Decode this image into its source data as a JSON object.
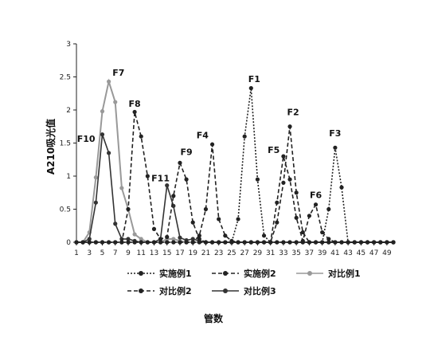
{
  "chart_data": {
    "type": "line",
    "title": "",
    "xlabel": "管数",
    "ylabel": "A210吸光值",
    "xlim": [
      1,
      50
    ],
    "ylim": [
      0,
      3
    ],
    "xticks": [
      1,
      3,
      5,
      7,
      9,
      11,
      13,
      15,
      17,
      19,
      21,
      23,
      25,
      27,
      29,
      31,
      33,
      35,
      37,
      39,
      41,
      43,
      45,
      47,
      49
    ],
    "yticks": [
      0,
      0.5,
      1,
      1.5,
      2,
      2.5,
      3
    ],
    "ytick_labels": [
      "0",
      "0.5",
      "1",
      "1.5",
      "2",
      "2.5",
      "3"
    ],
    "grid": false,
    "legend_position": "bottom",
    "x": [
      1,
      2,
      3,
      4,
      5,
      6,
      7,
      8,
      9,
      10,
      11,
      12,
      13,
      14,
      15,
      16,
      17,
      18,
      19,
      20,
      21,
      22,
      23,
      24,
      25,
      26,
      27,
      28,
      29,
      30,
      31,
      32,
      33,
      34,
      35,
      36,
      37,
      38,
      39,
      40,
      41,
      42,
      43,
      44,
      45,
      46,
      47,
      48,
      49,
      50
    ],
    "series": [
      {
        "name": "实施例1",
        "style": "dotted",
        "color": "#222222",
        "marker": true,
        "values": [
          0,
          0,
          0,
          0,
          0,
          0,
          0,
          0,
          0,
          0,
          0,
          0,
          0,
          0,
          0,
          0,
          0,
          0,
          0,
          0,
          0,
          0,
          0,
          0,
          0,
          0.35,
          1.6,
          2.33,
          0.95,
          0.1,
          0,
          0,
          0,
          0,
          0,
          0,
          0,
          0,
          0,
          0.5,
          1.43,
          0.83,
          0,
          0,
          0,
          0,
          0,
          0,
          0,
          0
        ]
      },
      {
        "name": "实施例2",
        "style": "dashed",
        "color": "#222222",
        "marker": true,
        "values": [
          0,
          0,
          0,
          0,
          0,
          0,
          0,
          0,
          0,
          0,
          0,
          0,
          0,
          0,
          0,
          0,
          0,
          0,
          0,
          0.1,
          0.5,
          1.48,
          0.35,
          0.1,
          0.02,
          0,
          0,
          0,
          0,
          0,
          0,
          0.6,
          1.3,
          0.95,
          0.37,
          0.02,
          0.4,
          0.57,
          0.15,
          0.05,
          0,
          0,
          0,
          0,
          0,
          0,
          0,
          0,
          0,
          0
        ]
      },
      {
        "name": "对比例1",
        "style": "solid",
        "color": "#999999",
        "marker": true,
        "values": [
          0,
          0,
          0.15,
          0.98,
          1.98,
          2.43,
          2.12,
          0.82,
          0.5,
          0.12,
          0.05,
          0,
          0,
          0,
          0.05,
          0.05,
          0.02,
          0,
          0,
          0,
          0,
          0,
          0,
          0,
          0,
          0,
          0,
          0,
          0,
          0,
          0,
          0,
          0,
          0,
          0,
          0,
          0,
          0,
          0,
          0,
          0,
          0,
          0,
          0,
          0,
          0,
          0,
          0,
          0,
          0
        ]
      },
      {
        "name": "对比例2",
        "style": "dashed",
        "color": "#222222",
        "marker": true,
        "values": [
          0,
          0,
          0,
          0,
          0,
          0,
          0,
          0,
          0.5,
          1.97,
          1.6,
          1.0,
          0.2,
          0.05,
          0.08,
          0.7,
          1.2,
          0.95,
          0.3,
          0.05,
          0,
          0,
          0,
          0,
          0,
          0,
          0,
          0,
          0,
          0,
          0,
          0.3,
          0.9,
          1.75,
          0.75,
          0.15,
          0,
          0,
          0,
          0,
          0,
          0,
          0,
          0,
          0,
          0,
          0,
          0,
          0,
          0
        ]
      },
      {
        "name": "对比例3",
        "style": "solid",
        "color": "#333333",
        "marker": true,
        "values": [
          0,
          0,
          0.05,
          0.6,
          1.63,
          1.35,
          0.28,
          0.05,
          0.05,
          0.02,
          0,
          0,
          0,
          0.05,
          0.86,
          0.55,
          0.07,
          0.03,
          0.05,
          0.02,
          0,
          0,
          0,
          0,
          0,
          0,
          0,
          0,
          0,
          0,
          0,
          0,
          0,
          0,
          0,
          0,
          0,
          0,
          0,
          0,
          0,
          0,
          0,
          0,
          0,
          0,
          0,
          0,
          0,
          0
        ]
      }
    ],
    "annotations": [
      {
        "text": "F1",
        "x": 28.5,
        "y": 2.42
      },
      {
        "text": "F2",
        "x": 34.5,
        "y": 1.92
      },
      {
        "text": "F3",
        "x": 41,
        "y": 1.6
      },
      {
        "text": "F4",
        "x": 20.5,
        "y": 1.57
      },
      {
        "text": "F5",
        "x": 31.5,
        "y": 1.35
      },
      {
        "text": "F6",
        "x": 38,
        "y": 0.67
      },
      {
        "text": "F7",
        "x": 7.5,
        "y": 2.52
      },
      {
        "text": "F8",
        "x": 10,
        "y": 2.05
      },
      {
        "text": "F9",
        "x": 18,
        "y": 1.32
      },
      {
        "text": "F10",
        "x": 2.5,
        "y": 1.52
      },
      {
        "text": "F11",
        "x": 14,
        "y": 0.92
      }
    ]
  }
}
